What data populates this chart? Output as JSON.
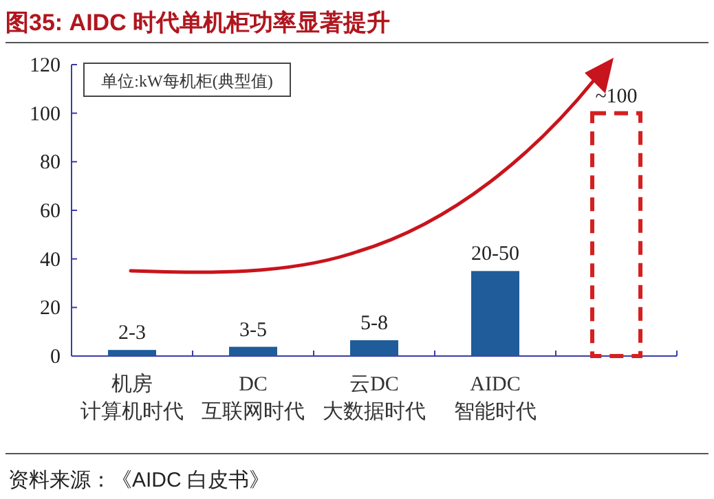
{
  "chart_data": {
    "type": "bar",
    "title": "图35:  AIDC 时代单机柜功率显著提升",
    "categories": [
      "机房计算机时代",
      "DC互联网时代",
      "云DC大数据时代",
      "AIDC智能时代",
      null
    ],
    "series": [
      {
        "color": "#1f5c99",
        "values": [
          2.5,
          3.8,
          6.5,
          35,
          null
        ],
        "value_labels": [
          "2-3",
          "3-5",
          "5-8",
          "20-50",
          null
        ]
      },
      {
        "color": "#d42020",
        "line_style": "dashed",
        "values": [
          null,
          null,
          null,
          null,
          100
        ],
        "value_labels": [
          null,
          null,
          null,
          null,
          "~100"
        ]
      }
    ],
    "ylim": [
      0,
      120
    ],
    "yticks": [
      0,
      20,
      40,
      60,
      80,
      100,
      120
    ],
    "grid": false,
    "annotations": [
      "单位:kW每机柜(典型值)",
      "资料来源：《AIDC 白皮书》"
    ]
  }
}
